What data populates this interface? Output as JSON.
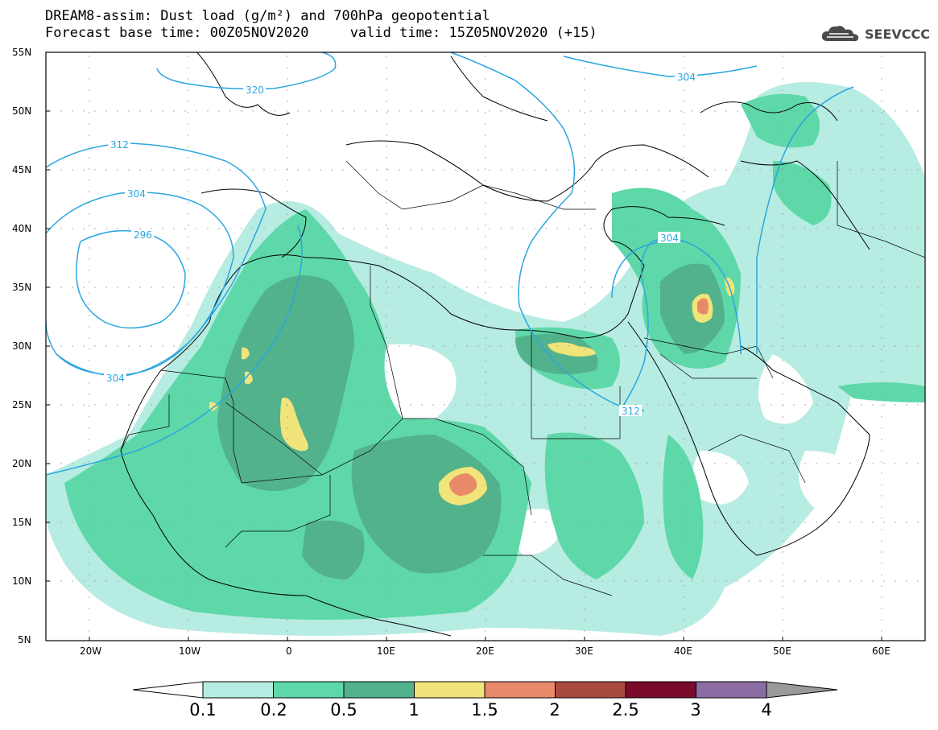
{
  "title": {
    "line1": "DREAM8-assim: Dust load (g/m²) and 700hPa geopotential",
    "line2": "Forecast base time: 00Z05NOV2020     valid time: 15Z05NOV2020 (+15)"
  },
  "logo": {
    "icon": "cloud-icon",
    "text": "SEEVCCC"
  },
  "axes": {
    "lat_labels": [
      "55N",
      "50N",
      "45N",
      "40N",
      "35N",
      "30N",
      "25N",
      "20N",
      "15N",
      "10N",
      "5N"
    ],
    "lon_labels": [
      "20W",
      "10W",
      "0",
      "10E",
      "20E",
      "30E",
      "40E",
      "50E",
      "60E"
    ]
  },
  "contour_labels": [
    "320",
    "304",
    "312",
    "304",
    "296",
    "304",
    "304",
    "312"
  ],
  "colorbar": {
    "labels": [
      "0.1",
      "0.2",
      "0.5",
      "1",
      "1.5",
      "2",
      "2.5",
      "3",
      "4"
    ],
    "colors": [
      "#ffffff",
      "#b7ece2",
      "#5ed8a8",
      "#52b28c",
      "#f1e47a",
      "#e8896a",
      "#a84a3e",
      "#7a0b2a",
      "#8b6ca3",
      "#9a9a9a"
    ]
  }
}
